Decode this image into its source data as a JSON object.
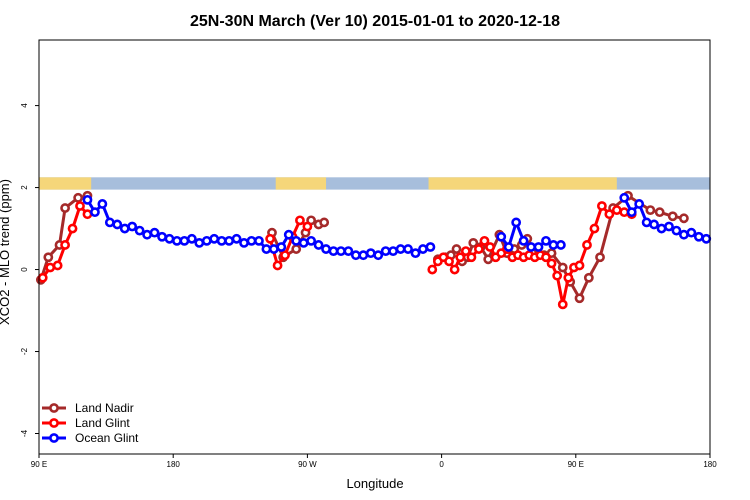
{
  "chart_data": {
    "type": "line",
    "title": "25N-30N March (Ver 10)   2015-01-01 to 2020-12-18",
    "xlabel": "Longitude",
    "ylabel": "XCO2 - MLO trend (ppm)",
    "xlim": [
      90,
      450
    ],
    "ylim": [
      -4.5,
      5.6
    ],
    "x_ticks": [
      {
        "value": 90,
        "label": "90 E"
      },
      {
        "value": 162,
        "label": "180"
      },
      {
        "value": 234,
        "label": "90 W"
      },
      {
        "value": 306,
        "label": "0"
      },
      {
        "value": 378,
        "label": "90 E"
      },
      {
        "value": 450,
        "label": "180"
      }
    ],
    "y_ticks": [
      {
        "value": -4,
        "label": "-4"
      },
      {
        "value": -2,
        "label": "-2"
      },
      {
        "value": 0,
        "label": "0"
      },
      {
        "value": 2,
        "label": "2"
      },
      {
        "value": 4,
        "label": "4"
      }
    ],
    "land_sea_strip": {
      "y_range": [
        1.95,
        2.25
      ],
      "ocean_color": "#a7bedc",
      "land_color": "#f5d67a",
      "land_segments": [
        [
          90,
          118
        ],
        [
          217,
          244
        ],
        [
          299,
          400
        ]
      ]
    },
    "legend_position": "bottom-left",
    "series": [
      {
        "name": "Land Nadir",
        "color": "#a52a2a",
        "x": [
          91,
          95,
          101,
          104,
          111,
          116,
          215,
          221,
          228,
          233,
          236,
          240,
          243,
          304,
          308,
          311,
          314,
          317,
          320,
          323,
          327,
          331,
          337,
          341,
          345,
          349,
          352,
          358,
          361,
          365,
          371,
          375,
          380,
          385,
          391,
          398,
          406,
          418,
          423,
          430,
          436
        ],
        "y": [
          -0.25,
          0.3,
          0.6,
          1.5,
          1.75,
          1.8,
          0.9,
          0.3,
          0.5,
          0.9,
          1.2,
          1.1,
          1.15,
          0.25,
          0.3,
          0.35,
          0.5,
          0.2,
          0.3,
          0.65,
          0.55,
          0.25,
          0.85,
          0.4,
          0.5,
          0.6,
          0.75,
          0.35,
          0.35,
          0.4,
          0.05,
          -0.3,
          -0.7,
          -0.2,
          0.3,
          1.5,
          1.8,
          1.45,
          1.4,
          1.3,
          1.25
        ],
        "values_ommitted_note": ""
      },
      {
        "name": "Land Glint",
        "color": "#ff0000",
        "x": [
          92,
          96,
          100,
          104,
          108,
          112,
          116,
          214,
          218,
          222,
          226,
          230,
          234,
          301,
          304,
          307,
          310,
          313,
          316,
          319,
          322,
          326,
          329,
          332,
          335,
          338,
          341,
          344,
          347,
          350,
          353,
          356,
          359,
          362,
          365,
          368,
          371,
          374,
          377,
          380,
          384,
          388,
          392,
          396,
          400,
          404,
          408
        ],
        "y": [
          -0.2,
          0.05,
          0.1,
          0.6,
          1.0,
          1.55,
          1.35,
          0.75,
          0.1,
          0.35,
          0.8,
          1.2,
          1.05,
          0.0,
          0.2,
          0.3,
          0.2,
          0.0,
          0.3,
          0.45,
          0.3,
          0.5,
          0.7,
          0.55,
          0.3,
          0.4,
          0.5,
          0.3,
          0.35,
          0.3,
          0.35,
          0.3,
          0.35,
          0.3,
          0.15,
          -0.15,
          -0.85,
          -0.2,
          0.05,
          0.1,
          0.6,
          1.0,
          1.55,
          1.35,
          1.45,
          1.4,
          1.35
        ],
        "values_ommitted_note": ""
      },
      {
        "name": "Ocean Glint",
        "color": "#0000ff",
        "x": [
          116,
          120,
          124,
          128,
          132,
          136,
          140,
          144,
          148,
          152,
          156,
          160,
          164,
          168,
          172,
          176,
          180,
          184,
          188,
          192,
          196,
          200,
          204,
          208,
          212,
          216,
          220,
          224,
          228,
          232,
          236,
          240,
          244,
          248,
          252,
          256,
          260,
          264,
          268,
          272,
          276,
          280,
          284,
          288,
          292,
          296,
          300,
          338,
          342,
          346,
          350,
          354,
          358,
          362,
          366,
          370,
          404,
          408,
          412,
          416,
          420,
          424,
          428,
          432,
          436,
          440,
          444,
          448
        ],
        "y": [
          1.7,
          1.4,
          1.6,
          1.15,
          1.1,
          1.0,
          1.05,
          0.95,
          0.85,
          0.9,
          0.8,
          0.75,
          0.7,
          0.7,
          0.75,
          0.65,
          0.7,
          0.75,
          0.7,
          0.7,
          0.75,
          0.65,
          0.7,
          0.7,
          0.5,
          0.5,
          0.55,
          0.85,
          0.7,
          0.65,
          0.7,
          0.6,
          0.5,
          0.45,
          0.45,
          0.45,
          0.35,
          0.35,
          0.4,
          0.35,
          0.45,
          0.45,
          0.5,
          0.5,
          0.4,
          0.5,
          0.55,
          0.8,
          0.55,
          1.15,
          0.7,
          0.55,
          0.55,
          0.7,
          0.6,
          0.6,
          1.75,
          1.4,
          1.6,
          1.15,
          1.1,
          1.0,
          1.05,
          0.95,
          0.85,
          0.9,
          0.8,
          0.75
        ],
        "values_ommitted_note": ""
      }
    ]
  }
}
